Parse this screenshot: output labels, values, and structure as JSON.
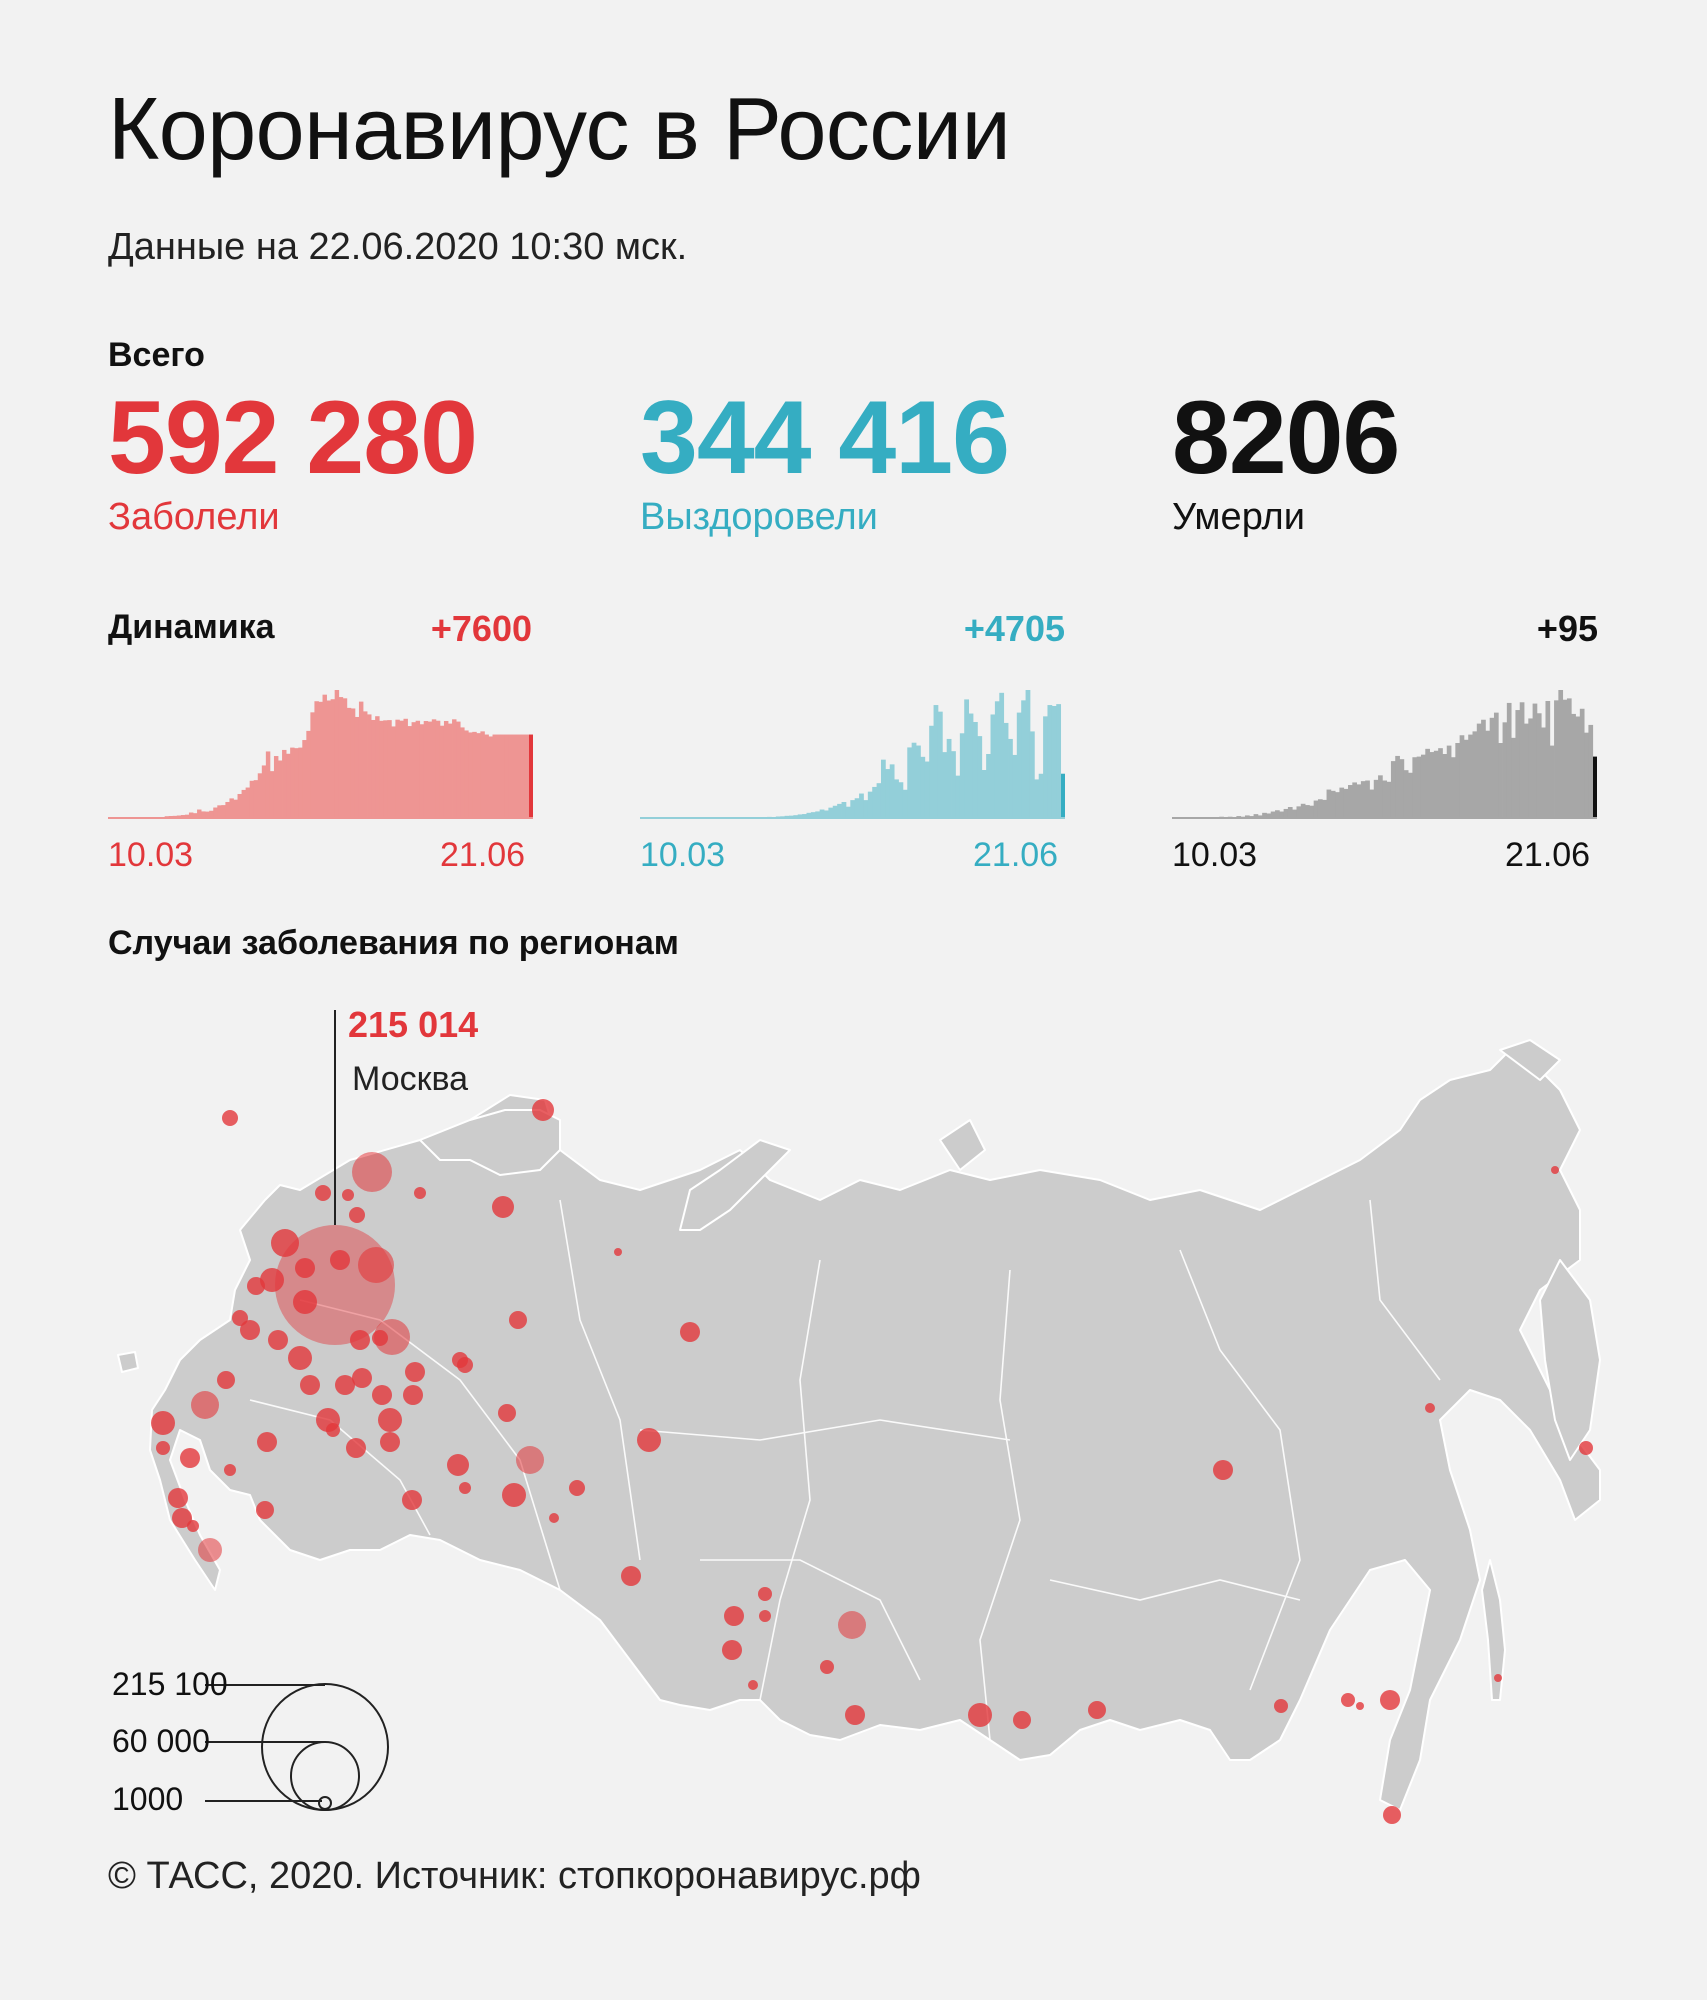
{
  "header": {
    "title": "Коронавирус в России",
    "date": "Данные на 22.06.2020 10:30 мск."
  },
  "totals": {
    "label": "Всего",
    "cases": {
      "value": "592 280",
      "label": "Заболели",
      "color": "#e2373b"
    },
    "recovered": {
      "value": "344 416",
      "label": "Выздоровели",
      "color": "#35adc2"
    },
    "deaths": {
      "value": "8206",
      "label": "Умерли",
      "color": "#111111"
    }
  },
  "dynamics": {
    "label": "Динамика",
    "cases_delta": "+7600",
    "recovered_delta": "+4705",
    "deaths_delta": "+95",
    "start_tick": "10.03",
    "end_tick": "21.06"
  },
  "regions": {
    "title": "Случаи заболевания по регионам",
    "callout": {
      "value": "215 014",
      "name": "Москва"
    },
    "legend": [
      "215 100",
      "60 000",
      "1000"
    ],
    "map_color": "#cccccc",
    "bubble_color": "#e2373b"
  },
  "footer": "© ТАСС, 2020. Источник: стопкоронавирус.рф",
  "chart_data": [
    {
      "type": "bar",
      "name": "Заболели",
      "color": "#e2373b",
      "x_start": "10.03",
      "x_end": "21.06",
      "values": [
        3,
        1,
        8,
        6,
        4,
        10,
        10,
        20,
        33,
        52,
        54,
        62,
        71,
        57,
        163,
        182,
        196,
        228,
        270,
        302,
        501,
        440,
        771,
        601,
        582,
        658,
        954,
        1154,
        1175,
        1459,
        1786,
        1667,
        2186,
        2558,
        2774,
        3388,
        3448,
        4070,
        4785,
        6060,
        4268,
        5642,
        5236,
        6198,
        5849,
        6411,
        6361,
        6411,
        7099,
        7933,
        9623,
        10633,
        10581,
        11231,
        10699,
        10817,
        11656,
        11012,
        10899,
        10028,
        9974,
        9200,
        10598,
        9709,
        9434,
        8926,
        9268,
        8849,
        8894,
        8915,
        8338,
        8952,
        8863,
        9035,
        8371,
        8726,
        8855,
        8536,
        8831,
        8779,
        8985,
        8858,
        8404,
        8835,
        8595,
        8987,
        8779,
        8248,
        7972,
        7790,
        7843,
        7728,
        7889,
        7600,
        7425,
        7600,
        7600,
        7600,
        7600,
        7600,
        7600,
        7600,
        7600,
        7600,
        7600
      ],
      "last_value": 7600
    },
    {
      "type": "bar",
      "name": "Выздоровели",
      "color": "#35adc2",
      "x_start": "10.03",
      "x_end": "21.06",
      "values": [
        0,
        0,
        0,
        0,
        1,
        0,
        0,
        2,
        0,
        0,
        3,
        0,
        1,
        2,
        5,
        4,
        3,
        6,
        12,
        8,
        5,
        11,
        24,
        20,
        35,
        38,
        45,
        76,
        91,
        120,
        100,
        160,
        180,
        230,
        250,
        300,
        380,
        420,
        550,
        620,
        700,
        900,
        800,
        1100,
        1300,
        1500,
        1700,
        1200,
        1900,
        2100,
        2600,
        1900,
        2800,
        3300,
        3700,
        6200,
        5200,
        5700,
        4100,
        3800,
        3000,
        7500,
        8000,
        7700,
        6500,
        6000,
        9800,
        12000,
        11300,
        7000,
        8400,
        7100,
        4500,
        9000,
        12600,
        11100,
        10200,
        8700,
        5100,
        6800,
        11000,
        12400,
        13300,
        10100,
        8400,
        6700,
        11200,
        12500,
        13600,
        9200,
        4100,
        4700,
        10800,
        12000,
        11900,
        12100,
        4705
      ],
      "last_value": 4705
    },
    {
      "type": "bar",
      "name": "Умерли",
      "color": "#111111",
      "x_start": "10.03",
      "x_end": "21.06",
      "values": [
        0,
        0,
        0,
        0,
        0,
        0,
        1,
        0,
        1,
        0,
        1,
        2,
        1,
        2,
        1,
        3,
        2,
        4,
        3,
        6,
        4,
        8,
        7,
        10,
        12,
        10,
        14,
        17,
        13,
        18,
        22,
        20,
        19,
        27,
        29,
        28,
        44,
        42,
        40,
        47,
        45,
        51,
        55,
        52,
        57,
        58,
        44,
        59,
        66,
        58,
        56,
        88,
        96,
        91,
        74,
        70,
        94,
        95,
        98,
        107,
        102,
        104,
        108,
        99,
        112,
        94,
        116,
        128,
        121,
        129,
        134,
        146,
        152,
        135,
        155,
        163,
        116,
        148,
        178,
        124,
        167,
        179,
        146,
        154,
        177,
        162,
        140,
        181,
        112,
        182,
        198,
        183,
        185,
        161,
        157,
        169,
        132,
        144,
        95
      ],
      "last_value": 95
    },
    {
      "type": "map-bubble",
      "name": "Случаи заболевания по регионам",
      "legend_values": [
        215100,
        60000,
        1000
      ],
      "regions": [
        {
          "name": "Москва",
          "value": 215014
        }
      ]
    }
  ]
}
